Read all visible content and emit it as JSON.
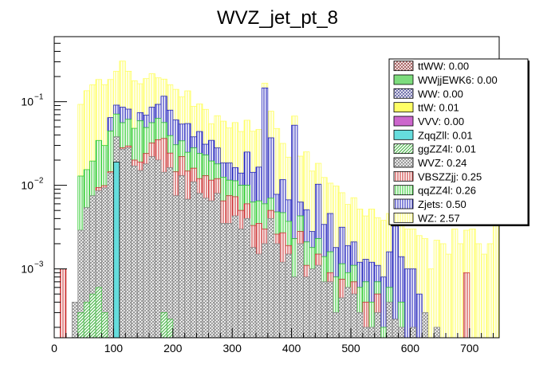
{
  "chart_data": {
    "type": "bar",
    "title": "WVZ_jet_pt_8",
    "xlabel": "",
    "ylabel": "",
    "log_y": true,
    "stacked": true,
    "xlim": [
      0,
      750
    ],
    "ylim": [
      0.00015,
      0.6
    ],
    "bin_width": 10,
    "x_ticks": [
      "0",
      "100",
      "200",
      "300",
      "400",
      "500",
      "600",
      "700"
    ],
    "y_ticks": [
      {
        "value": 0.001,
        "label": "10",
        "exp": "−3"
      },
      {
        "value": 0.01,
        "label": "10",
        "exp": "−2"
      },
      {
        "value": 0.1,
        "label": "10",
        "exp": "−1"
      }
    ],
    "legend_position": "top-right",
    "series": [
      {
        "name": "ttWW: 0.00",
        "color": "#a05050",
        "pattern": "crosshatch",
        "bins": []
      },
      {
        "name": "WWjjEWK6: 0.00",
        "color": "#7ddc7d",
        "pattern": "solid",
        "bins": []
      },
      {
        "name": "WW: 0.00",
        "color": "#5a5aa0",
        "pattern": "crosshatch",
        "bins": []
      },
      {
        "name": "ttW: 0.01",
        "color": "#ffff66",
        "pattern": "solid",
        "bins": []
      },
      {
        "name": "VVV: 0.00",
        "color": "#cc66cc",
        "pattern": "solid",
        "bins": []
      },
      {
        "name": "ZqqZll: 0.01",
        "color": "#66dddd",
        "pattern": "solid",
        "bins": [
          [
            100,
            0.019
          ]
        ]
      },
      {
        "name": "ggZZ4l: 0.01",
        "color": "#4fb84f",
        "pattern": "hatch",
        "bins": [
          [
            40,
            0.0003
          ],
          [
            50,
            0.0004
          ],
          [
            60,
            0.0005
          ],
          [
            70,
            0.0006
          ],
          [
            80,
            0.0003
          ],
          [
            180,
            0.0003
          ],
          [
            190,
            0.00025
          ]
        ]
      },
      {
        "name": "WVZ: 0.24",
        "color": "#888888",
        "pattern": "crosshatch",
        "bins": [
          [
            30,
            0.0004
          ],
          [
            40,
            0.0026
          ],
          [
            50,
            0.005
          ],
          [
            60,
            0.007
          ],
          [
            70,
            0.008
          ],
          [
            80,
            0.009
          ],
          [
            90,
            0.014
          ],
          [
            100,
            0.019
          ],
          [
            110,
            0.027
          ],
          [
            120,
            0.028
          ],
          [
            130,
            0.017
          ],
          [
            140,
            0.015
          ],
          [
            150,
            0.018
          ],
          [
            160,
            0.022
          ],
          [
            170,
            0.02
          ],
          [
            180,
            0.014
          ],
          [
            190,
            0.016
          ],
          [
            200,
            0.0075
          ],
          [
            210,
            0.013
          ],
          [
            220,
            0.0068
          ],
          [
            230,
            0.011
          ],
          [
            240,
            0.008
          ],
          [
            250,
            0.007
          ],
          [
            260,
            0.0065
          ],
          [
            270,
            0.008
          ],
          [
            280,
            0.0035
          ],
          [
            290,
            0.0035
          ],
          [
            300,
            0.0043
          ],
          [
            310,
            0.003
          ],
          [
            320,
            0.004
          ],
          [
            330,
            0.0018
          ],
          [
            340,
            0.0015
          ],
          [
            350,
            0.002
          ],
          [
            360,
            0.004
          ],
          [
            370,
            0.002
          ],
          [
            380,
            0.0012
          ],
          [
            390,
            0.0015
          ],
          [
            400,
            0.0008
          ],
          [
            410,
            0.002
          ],
          [
            420,
            0.0008
          ],
          [
            430,
            0.001
          ],
          [
            440,
            0.0011
          ],
          [
            450,
            0.0007
          ],
          [
            460,
            0.0007
          ],
          [
            470,
            0.0003
          ],
          [
            480,
            0.00045
          ],
          [
            490,
            0.0006
          ],
          [
            500,
            0.0005
          ],
          [
            510,
            0.0003
          ],
          [
            520,
            0.0002
          ],
          [
            530,
            0.0002
          ],
          [
            540,
            0.0003
          ],
          [
            560,
            0.0004
          ],
          [
            570,
            0.00025
          ],
          [
            580,
            0.0002
          ],
          [
            600,
            0.0002
          ],
          [
            620,
            0.0003
          ],
          [
            640,
            0.0002
          ]
        ]
      },
      {
        "name": "VBSZZjj: 0.25",
        "color": "#cc3333",
        "pattern": "vertical",
        "bins": [
          [
            10,
            0.001
          ],
          [
            70,
            0.0008
          ],
          [
            80,
            0.0006
          ],
          [
            90,
            0.0005
          ],
          [
            110,
            0.001
          ],
          [
            120,
            0.0015
          ],
          [
            130,
            0.003
          ],
          [
            140,
            0.004
          ],
          [
            150,
            0.006
          ],
          [
            160,
            0.01
          ],
          [
            170,
            0.015
          ],
          [
            180,
            0.022
          ],
          [
            190,
            0.008
          ],
          [
            200,
            0.007
          ],
          [
            210,
            0.009
          ],
          [
            220,
            0.008
          ],
          [
            230,
            0.005
          ],
          [
            240,
            0.004
          ],
          [
            250,
            0.006
          ],
          [
            260,
            0.005
          ],
          [
            270,
            0.004
          ],
          [
            280,
            0.003
          ],
          [
            290,
            0.004
          ],
          [
            300,
            0.003
          ],
          [
            310,
            0.002
          ],
          [
            320,
            0.002
          ],
          [
            330,
            0.0015
          ],
          [
            340,
            0.002
          ],
          [
            350,
            0.001
          ],
          [
            360,
            0.001
          ],
          [
            370,
            0.0006
          ],
          [
            380,
            0.0015
          ],
          [
            390,
            0.0004
          ],
          [
            410,
            0.0008
          ],
          [
            420,
            0.0003
          ],
          [
            440,
            0.0004
          ],
          [
            460,
            0.0002
          ],
          [
            480,
            0.0003
          ],
          [
            500,
            0.0002
          ],
          [
            520,
            0.0002
          ],
          [
            540,
            0.0002
          ],
          [
            690,
            0.0009
          ]
        ]
      },
      {
        "name": "qqZZ4l: 0.26",
        "color": "#33cc33",
        "pattern": "vertical",
        "bins": [
          [
            20,
            0.0001
          ],
          [
            40,
            0.01
          ],
          [
            50,
            0.01
          ],
          [
            60,
            0.012
          ],
          [
            70,
            0.025
          ],
          [
            80,
            0.02
          ],
          [
            90,
            0.03
          ],
          [
            100,
            0.033
          ],
          [
            110,
            0.028
          ],
          [
            120,
            0.032
          ],
          [
            130,
            0.028
          ],
          [
            140,
            0.04
          ],
          [
            150,
            0.025
          ],
          [
            160,
            0.024
          ],
          [
            170,
            0.028
          ],
          [
            180,
            0.02
          ],
          [
            190,
            0.015
          ],
          [
            200,
            0.016
          ],
          [
            210,
            0.012
          ],
          [
            220,
            0.01
          ],
          [
            230,
            0.012
          ],
          [
            240,
            0.012
          ],
          [
            250,
            0.01
          ],
          [
            260,
            0.008
          ],
          [
            270,
            0.006
          ],
          [
            280,
            0.006
          ],
          [
            290,
            0.004
          ],
          [
            300,
            0.004
          ],
          [
            310,
            0.005
          ],
          [
            320,
            0.004
          ],
          [
            330,
            0.003
          ],
          [
            340,
            0.003
          ],
          [
            350,
            0.003
          ],
          [
            360,
            0.002
          ],
          [
            370,
            0.0022
          ],
          [
            380,
            0.002
          ],
          [
            390,
            0.0018
          ],
          [
            400,
            0.0015
          ],
          [
            410,
            0.0015
          ],
          [
            420,
            0.001
          ],
          [
            430,
            0.0008
          ],
          [
            440,
            0.0008
          ],
          [
            450,
            0.0007
          ],
          [
            460,
            0.0007
          ],
          [
            470,
            0.0005
          ],
          [
            480,
            0.0004
          ],
          [
            490,
            0.0003
          ],
          [
            500,
            0.0004
          ],
          [
            510,
            0.0003
          ],
          [
            520,
            0.0003
          ],
          [
            530,
            0.0002
          ],
          [
            540,
            0.0002
          ],
          [
            550,
            0.0002
          ],
          [
            560,
            0.0002
          ],
          [
            580,
            0.0002
          ]
        ]
      },
      {
        "name": "Zjets: 0.50",
        "color": "#2222bb",
        "pattern": "vertical",
        "bins": [
          [
            90,
            0.02
          ],
          [
            100,
            0.02
          ],
          [
            110,
            0.03
          ],
          [
            120,
            0.02
          ],
          [
            140,
            0.015
          ],
          [
            150,
            0.02
          ],
          [
            160,
            0.03
          ],
          [
            170,
            0.03
          ],
          [
            180,
            0.06
          ],
          [
            190,
            0.04
          ],
          [
            200,
            0.03
          ],
          [
            210,
            0.02
          ],
          [
            220,
            0.03
          ],
          [
            230,
            0.01
          ],
          [
            240,
            0.02
          ],
          [
            250,
            0.008
          ],
          [
            260,
            0.015
          ],
          [
            270,
            0.01
          ],
          [
            280,
            0.006
          ],
          [
            290,
            0.007
          ],
          [
            300,
            0.005
          ],
          [
            310,
            0.004
          ],
          [
            320,
            0.015
          ],
          [
            330,
            0.008
          ],
          [
            340,
            0.01
          ],
          [
            350,
            0.14
          ],
          [
            360,
            0.03
          ],
          [
            370,
            0.003
          ],
          [
            380,
            0.007
          ],
          [
            390,
            0.003
          ],
          [
            400,
            0.05
          ],
          [
            410,
            0.002
          ],
          [
            420,
            0.003
          ],
          [
            430,
            0.001
          ],
          [
            440,
            0.008
          ],
          [
            450,
            0.002
          ],
          [
            460,
            0.003
          ],
          [
            470,
            0.001
          ],
          [
            480,
            0.002
          ],
          [
            490,
            0.001
          ],
          [
            500,
            0.001
          ],
          [
            510,
            0.0006
          ],
          [
            520,
            0.0006
          ],
          [
            530,
            0.0008
          ],
          [
            540,
            0.0004
          ],
          [
            550,
            0.0006
          ],
          [
            560,
            0.001
          ],
          [
            570,
            0.003
          ],
          [
            580,
            0.001
          ],
          [
            590,
            0.001
          ],
          [
            600,
            0.0008
          ],
          [
            610,
            0.0005
          ]
        ]
      },
      {
        "name": "WZ: 2.57",
        "color": "#ffff66",
        "pattern": "vertical",
        "bins": [
          [
            40,
            0.08
          ],
          [
            50,
            0.12
          ],
          [
            60,
            0.14
          ],
          [
            70,
            0.15
          ],
          [
            80,
            0.13
          ],
          [
            90,
            0.12
          ],
          [
            100,
            0.14
          ],
          [
            110,
            0.22
          ],
          [
            120,
            0.15
          ],
          [
            130,
            0.13
          ],
          [
            140,
            0.09
          ],
          [
            150,
            0.12
          ],
          [
            160,
            0.13
          ],
          [
            170,
            0.1
          ],
          [
            180,
            0.07
          ],
          [
            190,
            0.08
          ],
          [
            200,
            0.08
          ],
          [
            210,
            0.06
          ],
          [
            220,
            0.08
          ],
          [
            230,
            0.05
          ],
          [
            240,
            0.05
          ],
          [
            250,
            0.05
          ],
          [
            260,
            0.02
          ],
          [
            270,
            0.04
          ],
          [
            280,
            0.04
          ],
          [
            290,
            0.03
          ],
          [
            300,
            0.04
          ],
          [
            310,
            0.03
          ],
          [
            320,
            0.035
          ],
          [
            330,
            0.03
          ],
          [
            340,
            0.03
          ],
          [
            350,
            0.02
          ],
          [
            360,
            0.04
          ],
          [
            370,
            0.04
          ],
          [
            380,
            0.02
          ],
          [
            390,
            0.015
          ],
          [
            400,
            0.015
          ],
          [
            410,
            0.016
          ],
          [
            420,
            0.02
          ],
          [
            430,
            0.012
          ],
          [
            440,
            0.008
          ],
          [
            450,
            0.009
          ],
          [
            460,
            0.006
          ],
          [
            470,
            0.008
          ],
          [
            480,
            0.005
          ],
          [
            490,
            0.004
          ],
          [
            500,
            0.005
          ],
          [
            510,
            0.004
          ],
          [
            520,
            0.003
          ],
          [
            530,
            0.004
          ],
          [
            540,
            0.003
          ],
          [
            550,
            0.003
          ],
          [
            560,
            0.003
          ],
          [
            570,
            0.002
          ],
          [
            580,
            0.003
          ],
          [
            590,
            0.002
          ],
          [
            600,
            0.002
          ],
          [
            610,
            0.002
          ],
          [
            620,
            0.002
          ],
          [
            630,
            0.001
          ],
          [
            640,
            0.002
          ],
          [
            650,
            0.002
          ],
          [
            660,
            0.0015
          ],
          [
            670,
            0.003
          ],
          [
            680,
            0.002
          ],
          [
            690,
            0.002
          ],
          [
            700,
            0.003
          ],
          [
            710,
            0.002
          ],
          [
            720,
            0.0015
          ],
          [
            730,
            0.002
          ],
          [
            740,
            0.004
          ]
        ]
      }
    ]
  }
}
